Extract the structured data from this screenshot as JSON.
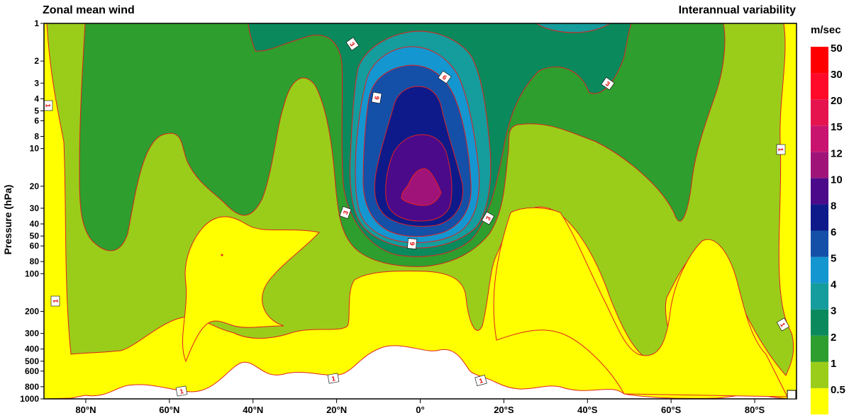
{
  "chart_data": {
    "type": "contour",
    "title_left": "Zonal mean wind",
    "title_right": "Interannual variability",
    "ylabel": "Pressure (hPa)",
    "y_scale": "log",
    "y_reversed": true,
    "ylim": [
      1000,
      1
    ],
    "y_ticks": [
      1000,
      800,
      600,
      500,
      400,
      300,
      200,
      100,
      80,
      60,
      50,
      40,
      30,
      20,
      10,
      8,
      6,
      5,
      4,
      3,
      2,
      1
    ],
    "xlim": [
      90,
      -90
    ],
    "x_ticks": [
      {
        "value": 80,
        "label": "80°N"
      },
      {
        "value": 60,
        "label": "60°N"
      },
      {
        "value": 40,
        "label": "40°N"
      },
      {
        "value": 20,
        "label": "20°N"
      },
      {
        "value": 0,
        "label": "0°"
      },
      {
        "value": -20,
        "label": "20°S"
      },
      {
        "value": -40,
        "label": "40°S"
      },
      {
        "value": -60,
        "label": "60°S"
      },
      {
        "value": -80,
        "label": "80°S"
      }
    ],
    "colorbar": {
      "unit": "m/sec",
      "levels": [
        "0.5",
        "1",
        "2",
        "3",
        "4",
        "5",
        "6",
        "8",
        "10",
        "12",
        "15",
        "20",
        "30",
        "50"
      ],
      "colors": [
        "#ffff00",
        "#9acd1a",
        "#2e9e2e",
        "#0a8a5c",
        "#159c9c",
        "#1496d0",
        "#1450a8",
        "#0e1a8a",
        "#4b0a8a",
        "#a0147a",
        "#c8146e",
        "#e6144e",
        "#ff0a28",
        "#ff0000"
      ]
    },
    "contour_labels": [
      "3",
      "6",
      "6",
      "3",
      "1",
      "1",
      "3",
      "6",
      "3",
      "1",
      "1",
      "1",
      "1",
      "1"
    ]
  }
}
